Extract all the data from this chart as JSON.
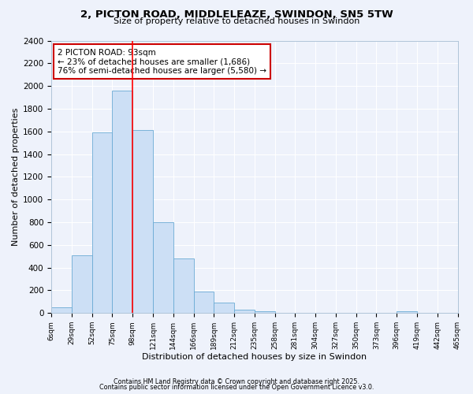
{
  "title": "2, PICTON ROAD, MIDDLELEAZE, SWINDON, SN5 5TW",
  "subtitle": "Size of property relative to detached houses in Swindon",
  "xlabel": "Distribution of detached houses by size in Swindon",
  "ylabel": "Number of detached properties",
  "bar_values": [
    50,
    510,
    1590,
    1960,
    1610,
    800,
    480,
    190,
    90,
    30,
    15,
    5,
    0,
    0,
    0,
    0,
    0,
    15,
    0,
    0
  ],
  "bin_labels": [
    "6sqm",
    "29sqm",
    "52sqm",
    "75sqm",
    "98sqm",
    "121sqm",
    "144sqm",
    "166sqm",
    "189sqm",
    "212sqm",
    "235sqm",
    "258sqm",
    "281sqm",
    "304sqm",
    "327sqm",
    "350sqm",
    "373sqm",
    "396sqm",
    "419sqm",
    "442sqm",
    "465sqm"
  ],
  "bar_color": "#ccdff5",
  "bar_edge_color": "#6aaad4",
  "background_color": "#eef2fb",
  "grid_color": "#ffffff",
  "ylim": [
    0,
    2400
  ],
  "yticks": [
    0,
    200,
    400,
    600,
    800,
    1000,
    1200,
    1400,
    1600,
    1800,
    2000,
    2200,
    2400
  ],
  "vline_bin_index": 4,
  "annotation_title": "2 PICTON ROAD: 93sqm",
  "annotation_line1": "← 23% of detached houses are smaller (1,686)",
  "annotation_line2": "76% of semi-detached houses are larger (5,580) →",
  "annotation_box_color": "#ffffff",
  "annotation_box_edge": "#cc0000",
  "footer_line1": "Contains HM Land Registry data © Crown copyright and database right 2025.",
  "footer_line2": "Contains public sector information licensed under the Open Government Licence v3.0."
}
